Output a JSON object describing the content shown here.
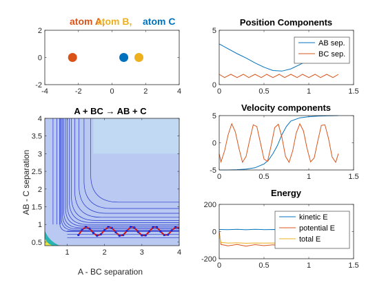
{
  "colors": {
    "atom_a": "#d95319",
    "atom_b": "#edb120",
    "atom_c": "#0072bd",
    "series_blue": "#0072bd",
    "series_orange": "#d95319",
    "series_yellow": "#edb120",
    "contour_bg": "#b9c9f2",
    "contour_line": "#2233cc",
    "trajectory": "#d11a1a",
    "trajectory_marker": "#1a2bd6"
  },
  "chart_data": [
    {
      "id": "atoms",
      "type": "scatter",
      "title_labels": [
        "atom A,",
        "atom B,",
        "atom C"
      ],
      "xlim": [
        -4,
        4
      ],
      "ylim": [
        -2,
        2
      ],
      "xticks": [
        -4,
        -2,
        0,
        2,
        4
      ],
      "yticks": [
        -2,
        0,
        2
      ],
      "points": [
        {
          "atom": "A",
          "x": -2.35,
          "y": 0
        },
        {
          "atom": "C",
          "x": 0.7,
          "y": 0
        },
        {
          "atom": "B",
          "x": 1.6,
          "y": 0
        }
      ],
      "grid": false
    },
    {
      "id": "contour",
      "type": "contour",
      "title": "A + BC → AB + C",
      "xlabel": "A - BC separation",
      "ylabel": "AB - C separation",
      "xlim": [
        0.4,
        4
      ],
      "ylim": [
        0.4,
        4
      ],
      "xticks": [
        1,
        2,
        3,
        4
      ],
      "yticks": [
        0.5,
        1,
        1.5,
        2,
        2.5,
        3,
        3.5,
        4
      ],
      "trajectory": {
        "x": [
          1.3,
          1.4,
          1.5,
          1.6,
          1.7,
          1.8,
          1.9,
          2.0,
          2.1,
          2.2,
          2.3,
          2.4,
          2.5,
          2.6,
          2.7,
          2.8,
          2.9,
          3.0,
          3.1,
          3.2,
          3.3,
          3.4,
          3.5,
          3.6,
          3.7,
          3.8,
          3.9,
          4.0
        ],
        "y": [
          0.7,
          0.85,
          0.93,
          0.88,
          0.76,
          0.68,
          0.72,
          0.84,
          0.93,
          0.9,
          0.78,
          0.68,
          0.7,
          0.82,
          0.93,
          0.91,
          0.79,
          0.69,
          0.69,
          0.8,
          0.92,
          0.92,
          0.8,
          0.7,
          0.71,
          0.83,
          0.92,
          0.9
        ]
      }
    },
    {
      "id": "position",
      "type": "line",
      "title": "Position Components",
      "xlim": [
        0,
        1.5
      ],
      "ylim": [
        0,
        5
      ],
      "xticks": [
        0,
        0.5,
        1,
        1.5
      ],
      "yticks": [
        0,
        5
      ],
      "legend": "top-right",
      "series": [
        {
          "name": "AB sep.",
          "x": [
            0,
            0.1,
            0.2,
            0.3,
            0.4,
            0.5,
            0.6,
            0.7,
            0.8,
            0.9,
            0.95
          ],
          "y": [
            3.75,
            3.3,
            2.85,
            2.45,
            2.0,
            1.6,
            1.3,
            1.25,
            1.45,
            1.85,
            2.05
          ]
        },
        {
          "name": "BC sep.",
          "x": [
            0,
            0.06,
            0.13,
            0.2,
            0.27,
            0.33,
            0.4,
            0.47,
            0.53,
            0.6,
            0.67,
            0.73,
            0.8,
            0.87,
            0.93,
            1.0,
            1.07,
            1.13,
            1.2,
            1.27,
            1.33
          ],
          "y": [
            0.95,
            0.65,
            0.95,
            0.65,
            0.95,
            0.65,
            0.95,
            0.65,
            0.95,
            0.65,
            0.95,
            0.65,
            0.95,
            0.65,
            0.95,
            0.65,
            0.95,
            0.65,
            0.95,
            0.65,
            0.95
          ]
        }
      ]
    },
    {
      "id": "velocity",
      "type": "line",
      "title": "Velocity components",
      "xlim": [
        0,
        1.5
      ],
      "ylim": [
        -5,
        5
      ],
      "xticks": [
        0,
        0.5,
        1,
        1.5
      ],
      "yticks": [
        -5,
        0,
        5
      ],
      "series": [
        {
          "x": [
            0,
            0.1,
            0.2,
            0.3,
            0.4,
            0.5,
            0.55,
            0.6,
            0.65,
            0.7,
            0.75,
            0.8,
            0.9,
            1.0,
            1.1,
            1.2,
            1.33
          ],
          "y": [
            -5,
            -5,
            -4.95,
            -4.85,
            -4.6,
            -3.9,
            -3.2,
            -2.0,
            -0.5,
            1.5,
            3.0,
            4.0,
            4.6,
            4.8,
            4.9,
            4.95,
            5.0
          ]
        },
        {
          "x": [
            0,
            0.02,
            0.06,
            0.1,
            0.14,
            0.18,
            0.22,
            0.26,
            0.3,
            0.34,
            0.38,
            0.42,
            0.46,
            0.5,
            0.54,
            0.58,
            0.62,
            0.66,
            0.7,
            0.74,
            0.78,
            0.82,
            0.86,
            0.9,
            0.94,
            0.98,
            1.02,
            1.06,
            1.1,
            1.14,
            1.18,
            1.22,
            1.26,
            1.3,
            1.33
          ],
          "y": [
            -2,
            -3.5,
            -1.5,
            1.5,
            3.5,
            2.0,
            -1.0,
            -3.6,
            -2.5,
            0.5,
            3.3,
            3.0,
            0.0,
            -3.0,
            -3.4,
            -0.5,
            2.8,
            3.4,
            1.0,
            -2.5,
            -3.6,
            -1.5,
            1.8,
            3.5,
            2.2,
            -1.0,
            -3.5,
            -2.8,
            0.3,
            3.2,
            3.3,
            0.8,
            -2.6,
            -3.6,
            -2.0
          ]
        }
      ]
    },
    {
      "id": "energy",
      "type": "line",
      "title": "Energy",
      "xlim": [
        0,
        1.5
      ],
      "ylim": [
        -200,
        200
      ],
      "xticks": [
        0,
        0.5,
        1,
        1.5
      ],
      "yticks": [
        -200,
        0,
        200
      ],
      "legend": "top-right",
      "series": [
        {
          "name": "kinetic E",
          "x": [
            0,
            0.1,
            0.2,
            0.3,
            0.4,
            0.5,
            0.6,
            0.7,
            0.8,
            0.9,
            1.0,
            1.1,
            1.2,
            1.33
          ],
          "y": [
            15,
            14,
            16,
            13,
            16,
            14,
            15,
            13,
            16,
            14,
            15,
            14,
            16,
            15
          ]
        },
        {
          "name": "potential E",
          "x": [
            0,
            0.02,
            0.1,
            0.2,
            0.3,
            0.4,
            0.5,
            0.6,
            0.7,
            0.8,
            0.9,
            1.0,
            1.1,
            1.2,
            1.33
          ],
          "y": [
            0,
            -95,
            -105,
            -95,
            -108,
            -96,
            -104,
            -97,
            -105,
            -96,
            -104,
            -98,
            -103,
            -97,
            -100
          ]
        },
        {
          "name": "total E",
          "x": [
            0,
            0.02,
            0.1,
            0.2,
            0.3,
            0.4,
            0.5,
            0.6,
            0.7,
            0.8,
            0.9,
            1.0,
            1.1,
            1.2,
            1.33
          ],
          "y": [
            -20,
            -80,
            -85,
            -83,
            -86,
            -84,
            -85,
            -84,
            -86,
            -84,
            -85,
            -85,
            -84,
            -85,
            -85
          ]
        }
      ]
    }
  ]
}
